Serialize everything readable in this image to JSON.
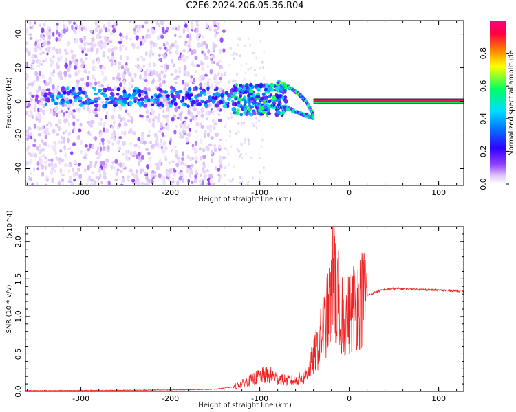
{
  "title": "C2E6.2024.206.05.36.R04",
  "colors": {
    "snr_line": "#ee2222",
    "frame": "#000000",
    "background": "#ffffff"
  },
  "chart_data": [
    {
      "type": "heatmap",
      "xlabel": "Height of straight line (km)",
      "ylabel": "Frequency (Hz)",
      "xlim": [
        -362,
        128
      ],
      "ylim": [
        -50,
        48
      ],
      "xticks": [
        -300,
        -200,
        -100,
        0,
        100
      ],
      "yticks": [
        -40,
        -20,
        0,
        20,
        40
      ],
      "colorbar": {
        "label": "Normalized spectral amplitude",
        "range": [
          0,
          1
        ],
        "ticks": [
          "0.0",
          "0.2",
          "0.4",
          "0.6",
          "0.8"
        ],
        "colormap": [
          "#ffffff",
          "#e0c8f8",
          "#9040ff",
          "#3000ff",
          "#0080ff",
          "#00e0ff",
          "#00ff60",
          "#ffff00",
          "#ff8000",
          "#ff0040",
          "#ff0080"
        ]
      },
      "features": [
        {
          "feature": "noise",
          "x_range": [
            -362,
            -140
          ],
          "freq_range": [
            -50,
            48
          ],
          "amplitude": 0.12
        },
        {
          "feature": "carrier-band",
          "x_range": [
            -340,
            -130
          ],
          "freq_range": [
            -3,
            8
          ],
          "amplitude": 0.35
        },
        {
          "feature": "signal-band",
          "x_range": [
            -130,
            -70
          ],
          "freq_range": [
            -8,
            10
          ],
          "amplitude": 0.45
        },
        {
          "feature": "branch-upper",
          "points": [
            [
              -80,
              12
            ],
            [
              -60,
              6
            ],
            [
              -48,
              0
            ],
            [
              -40,
              -8
            ]
          ],
          "amplitude": 0.5
        },
        {
          "feature": "branch-lower",
          "points": [
            [
              -105,
              -2
            ],
            [
              -70,
              -4
            ],
            [
              -50,
              -8
            ],
            [
              -40,
              -10
            ]
          ],
          "amplitude": 0.45
        },
        {
          "feature": "tone",
          "x_range": [
            -40,
            128
          ],
          "freq": 0,
          "amplitude": 0.95
        }
      ]
    },
    {
      "type": "line",
      "xlabel": "Height of straight line (km)",
      "ylabel": "SNR (10 * v/v)",
      "y_multiplier": "(x10^4)",
      "xlim": [
        -362,
        128
      ],
      "ylim": [
        0,
        2.2
      ],
      "xticks": [
        -300,
        -200,
        -100,
        0,
        100
      ],
      "yticks": [
        "0.0",
        "0.5",
        "1.0",
        "1.5",
        "2.0"
      ],
      "series": [
        {
          "x": [
            -362,
            -300,
            -250,
            -200,
            -150,
            -130,
            -120,
            -110,
            -100,
            -90,
            -80,
            -70,
            -60,
            -50,
            -45,
            -40,
            -35,
            -30,
            -25,
            -20,
            -17,
            -15,
            -12,
            -10,
            -8,
            -5,
            0,
            5,
            10,
            15,
            20,
            25,
            30,
            40,
            50,
            60,
            80,
            100,
            128
          ],
          "y": [
            0.01,
            0.012,
            0.015,
            0.02,
            0.03,
            0.06,
            0.1,
            0.15,
            0.2,
            0.22,
            0.18,
            0.15,
            0.14,
            0.2,
            0.3,
            0.45,
            0.6,
            0.8,
            1.0,
            1.2,
            2.2,
            1.0,
            1.3,
            0.5,
            1.1,
            1.0,
            1.05,
            1.15,
            1.2,
            1.25,
            1.28,
            1.3,
            1.33,
            1.36,
            1.37,
            1.37,
            1.36,
            1.35,
            1.34
          ]
        }
      ]
    }
  ]
}
